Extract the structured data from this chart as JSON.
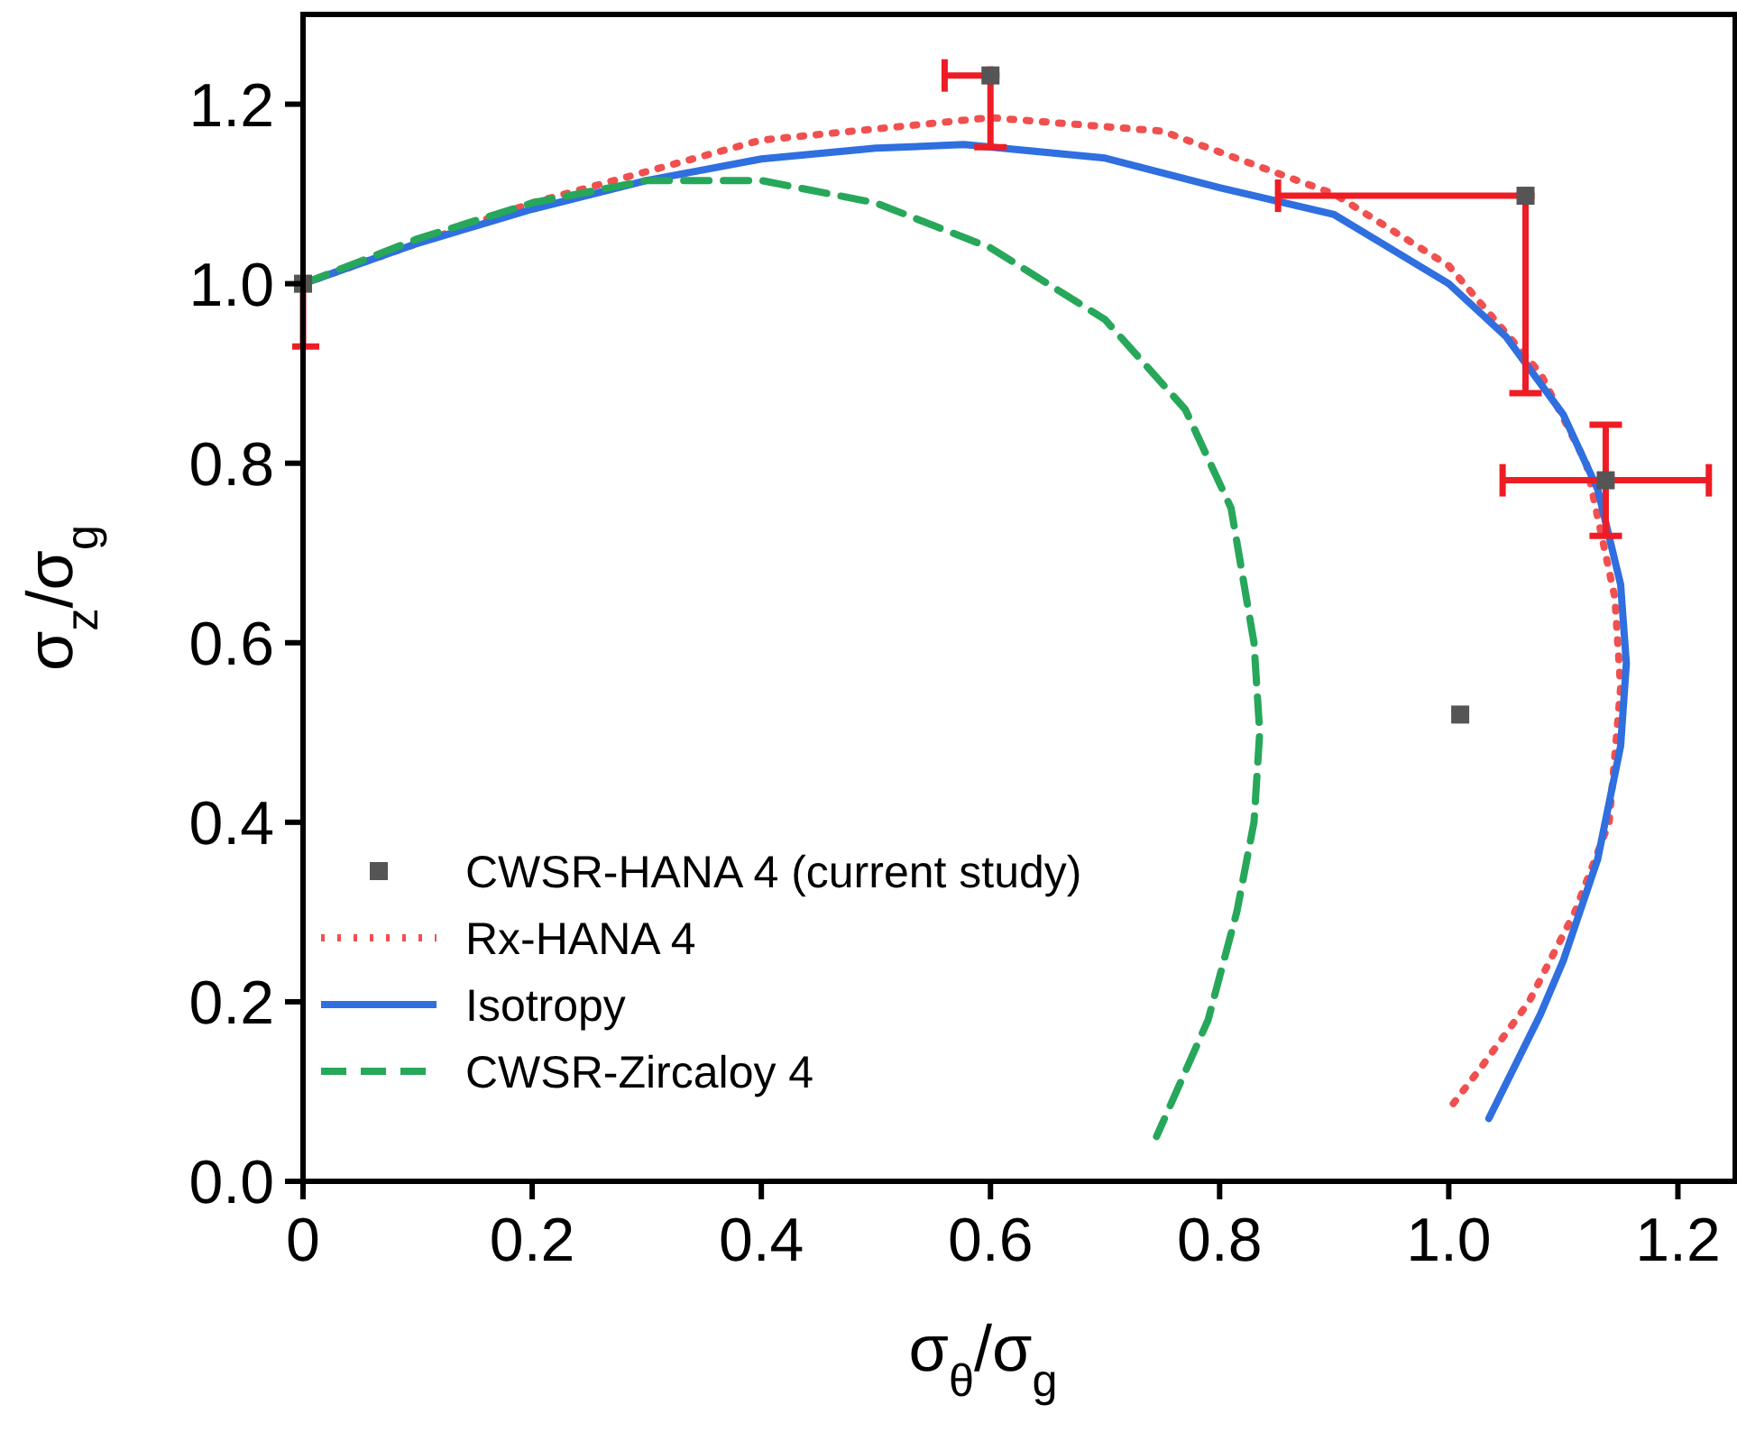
{
  "chart_data": {
    "type": "line",
    "xlabel": "σ$_{θ}$/σ$_{g}$",
    "ylabel": "σ$_{z}$/σ$_{g}$",
    "xlim": [
      0,
      1.25
    ],
    "ylim": [
      0,
      1.3
    ],
    "xticks": [
      0,
      {
        "value": 0.2,
        "label": "0.2"
      },
      {
        "value": 0.4,
        "label": "0.4"
      },
      {
        "value": 0.6,
        "label": "0.6"
      },
      {
        "value": 0.8,
        "label": "0.8"
      },
      {
        "value": 1,
        "label": "1.0"
      },
      {
        "value": 1.2,
        "label": "1.2"
      }
    ],
    "yticks": [
      {
        "value": 0,
        "label": "0.0"
      },
      {
        "value": 0.2,
        "label": "0.2"
      },
      {
        "value": 0.4,
        "label": "0.4"
      },
      {
        "value": 0.6,
        "label": "0.6"
      },
      {
        "value": 0.8,
        "label": "0.8"
      },
      {
        "value": 1,
        "label": "1.0"
      },
      {
        "value": 1.2,
        "label": "1.2"
      }
    ],
    "legend": "bottom left",
    "grid": false,
    "series": [
      {
        "name": "CWSR-HANA 4 (current study)",
        "type": "scatter",
        "marker": "square",
        "color": "#555555",
        "x": [
          0,
          0.6,
          1.067,
          1.137,
          1.01
        ],
        "values": [
          1.0,
          1.232,
          1.098,
          0.781,
          0.52
        ],
        "errors": [
          [
            0.93,
            1.0
          ],
          [
            1.152,
            1.232
          ],
          [
            0.878,
            1.098
          ],
          0.062,
          null
        ],
        "xerrors": [
          null,
          [
            0.56,
            0.6
          ],
          [
            0.851,
            1.067
          ],
          0.09,
          null
        ]
      },
      {
        "name": "Rx-HANA 4",
        "line_style": "dotted",
        "color": "#f0504f",
        "x": [
          0,
          0.2,
          0.4,
          0.6,
          0.75,
          0.9,
          1.0,
          1.08,
          1.12,
          1.145,
          1.15,
          1.14,
          1.11,
          1.07,
          1.03,
          1.0
        ],
        "values": [
          1.0,
          1.09,
          1.16,
          1.185,
          1.17,
          1.1,
          1.02,
          0.9,
          0.8,
          0.65,
          0.55,
          0.4,
          0.3,
          0.2,
          0.13,
          0.08
        ]
      },
      {
        "name": "Isotropy",
        "line_style": "solid",
        "color": "#2f6fdf",
        "x": [
          0,
          0.1,
          0.2,
          0.3,
          0.4,
          0.5,
          0.577,
          0.7,
          0.8,
          0.9,
          1.0,
          1.05,
          1.1,
          1.13,
          1.15,
          1.155,
          1.15,
          1.13,
          1.1,
          1.08,
          1.035
        ],
        "values": [
          1.0,
          1.045,
          1.083,
          1.115,
          1.139,
          1.151,
          1.155,
          1.14,
          1.107,
          1.077,
          1.0,
          0.941,
          0.854,
          0.771,
          0.665,
          0.577,
          0.485,
          0.359,
          0.246,
          0.186,
          0.07
        ]
      },
      {
        "name": "CWSR-Zircaloy 4",
        "line_style": "dashed",
        "color": "#27a75a",
        "x": [
          0,
          0.1,
          0.2,
          0.3,
          0.4,
          0.5,
          0.6,
          0.7,
          0.77,
          0.81,
          0.83,
          0.835,
          0.83,
          0.815,
          0.79,
          0.745
        ],
        "values": [
          1.0,
          1.05,
          1.09,
          1.115,
          1.115,
          1.09,
          1.04,
          0.96,
          0.86,
          0.75,
          0.6,
          0.5,
          0.4,
          0.3,
          0.18,
          0.05
        ]
      }
    ]
  }
}
